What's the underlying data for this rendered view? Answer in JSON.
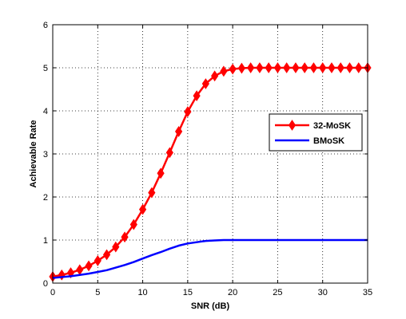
{
  "chart_data": {
    "type": "line",
    "title": "",
    "xlabel": "SNR (dB)",
    "ylabel": "Achievable Rate",
    "xlim": [
      0,
      35
    ],
    "ylim": [
      0,
      6
    ],
    "xticks": [
      0,
      5,
      10,
      15,
      20,
      25,
      30,
      35
    ],
    "yticks": [
      0,
      1,
      2,
      3,
      4,
      5,
      6
    ],
    "grid": true,
    "legend_position": "right",
    "series": [
      {
        "name": "32-MoSK",
        "color": "#ff0000",
        "marker": "diamond",
        "x": [
          0,
          1,
          2,
          3,
          4,
          5,
          6,
          7,
          8,
          9,
          10,
          11,
          12,
          13,
          14,
          15,
          16,
          17,
          18,
          19,
          20,
          21,
          22,
          23,
          24,
          25,
          26,
          27,
          28,
          29,
          30,
          31,
          32,
          33,
          34,
          35
        ],
        "y": [
          0.15,
          0.19,
          0.24,
          0.31,
          0.4,
          0.52,
          0.66,
          0.84,
          1.07,
          1.36,
          1.71,
          2.1,
          2.55,
          3.03,
          3.52,
          3.98,
          4.35,
          4.63,
          4.81,
          4.92,
          4.97,
          4.99,
          5.0,
          5.0,
          5.0,
          5.0,
          5.0,
          5.0,
          5.0,
          5.0,
          5.0,
          5.0,
          5.0,
          5.0,
          5.0,
          5.0
        ]
      },
      {
        "name": "BMoSK",
        "color": "#0000ff",
        "marker": "none",
        "x": [
          0,
          1,
          2,
          3,
          4,
          5,
          6,
          7,
          8,
          9,
          10,
          11,
          12,
          13,
          14,
          15,
          16,
          17,
          18,
          19,
          20,
          21,
          22,
          23,
          24,
          25,
          26,
          27,
          28,
          29,
          30,
          31,
          32,
          33,
          34,
          35
        ],
        "y": [
          0.12,
          0.14,
          0.16,
          0.19,
          0.22,
          0.26,
          0.3,
          0.36,
          0.42,
          0.49,
          0.57,
          0.65,
          0.72,
          0.8,
          0.87,
          0.92,
          0.95,
          0.98,
          0.99,
          1.0,
          1.0,
          1.0,
          1.0,
          1.0,
          1.0,
          1.0,
          1.0,
          1.0,
          1.0,
          1.0,
          1.0,
          1.0,
          1.0,
          1.0,
          1.0,
          1.0
        ]
      }
    ]
  }
}
